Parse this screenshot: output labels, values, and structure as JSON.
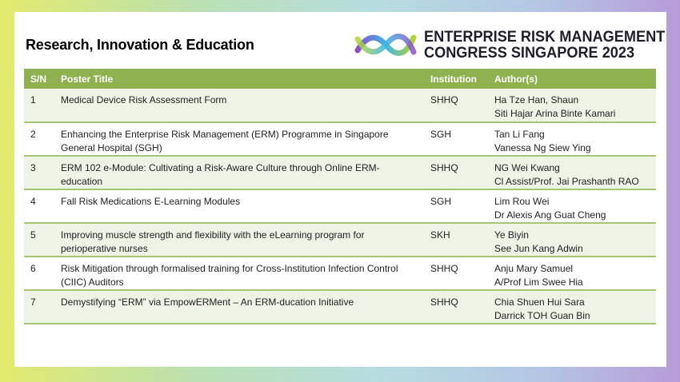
{
  "section_title": "Research, Innovation & Education",
  "logo": {
    "line1": "ENTERPRISE RISK MANAGEMENT",
    "line2": "CONGRESS SINGAPORE 2023"
  },
  "table": {
    "headers": [
      "S/N",
      "Poster Title",
      "Institution",
      "Author(s)"
    ],
    "rows": [
      {
        "sn": "1",
        "title": "Medical Device Risk Assessment  Form",
        "institution": "SHHQ",
        "authors": [
          "Ha Tze Han, Shaun",
          "Siti Hajar Arina Binte Kamari"
        ]
      },
      {
        "sn": "2",
        "title": "Enhancing the Enterprise Risk Management (ERM) Programme in Singapore General Hospital (SGH)",
        "institution": "SGH",
        "authors": [
          "Tan Li Fang",
          "Vanessa Ng Siew Ying"
        ]
      },
      {
        "sn": "3",
        "title": "ERM 102 e-Module: Cultivating a Risk-Aware Culture through Online ERM-education",
        "institution": "SHHQ",
        "authors": [
          "NG Wei Kwang",
          "Cl Assist/Prof. Jai Prashanth RAO"
        ]
      },
      {
        "sn": "4",
        "title": "Fall Risk Medications E-Learning Modules",
        "institution": "SGH",
        "authors": [
          "Lim Rou Wei",
          "Dr Alexis Ang Guat Cheng"
        ]
      },
      {
        "sn": "5",
        "title": "Improving muscle strength and flexibility with the eLearning program for perioperative nurses",
        "institution": "SKH",
        "authors": [
          "Ye Biyin",
          "See Jun Kang Adwin"
        ]
      },
      {
        "sn": "6",
        "title": "Risk Mitigation through formalised training for Cross-Institution  Infection Control (CIIC) Auditors",
        "institution": "SHHQ",
        "authors": [
          "Anju  Mary Samuel",
          "A/Prof Lim Swee Hia"
        ]
      },
      {
        "sn": "7",
        "title": "Demystifying “ERM” via EmpowERMent – An ERM-ducation Initiative",
        "institution": "SHHQ",
        "authors": [
          "Chia Shuen Hui Sara",
          "Darrick TOH Guan Bin"
        ]
      }
    ]
  }
}
